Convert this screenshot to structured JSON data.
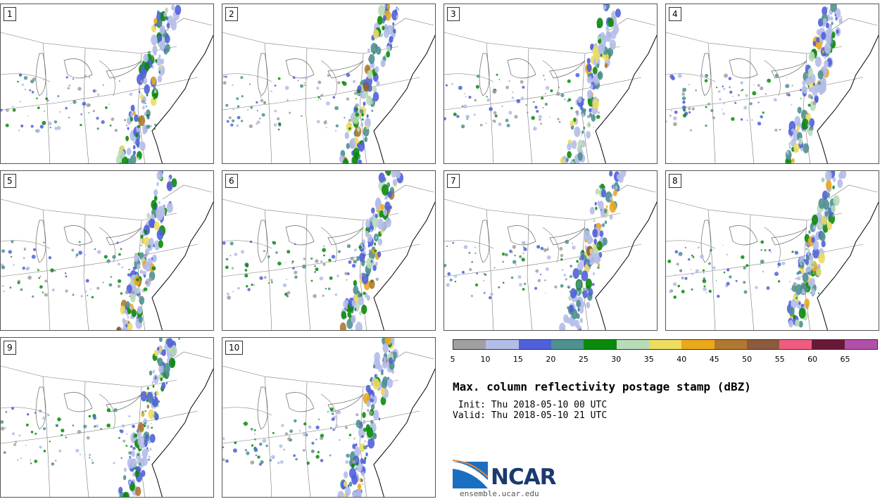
{
  "panels": [
    {
      "label": "1"
    },
    {
      "label": "2"
    },
    {
      "label": "3"
    },
    {
      "label": "4"
    },
    {
      "label": "5"
    },
    {
      "label": "6"
    },
    {
      "label": "7"
    },
    {
      "label": "8"
    },
    {
      "label": "9"
    },
    {
      "label": "10"
    }
  ],
  "colorbar": {
    "colors": [
      "#a0a0a0",
      "#b4bce8",
      "#5060d8",
      "#4f9090",
      "#0a8a0a",
      "#b8dcb8",
      "#ecdc60",
      "#eaa81c",
      "#b07830",
      "#8c5a3c",
      "#ee5c80",
      "#6a1838",
      "#b050a8"
    ],
    "ticks": [
      "5",
      "10",
      "15",
      "20",
      "25",
      "30",
      "35",
      "40",
      "45",
      "50",
      "55",
      "60",
      "65"
    ]
  },
  "title": "Max. column reflectivity postage stamp (dBZ)",
  "init": " Init: Thu 2018-05-10 00 UTC",
  "valid": "Valid: Thu 2018-05-10 21 UTC",
  "logo": {
    "text": "NCAR",
    "url": "ensemble.ucar.edu"
  }
}
